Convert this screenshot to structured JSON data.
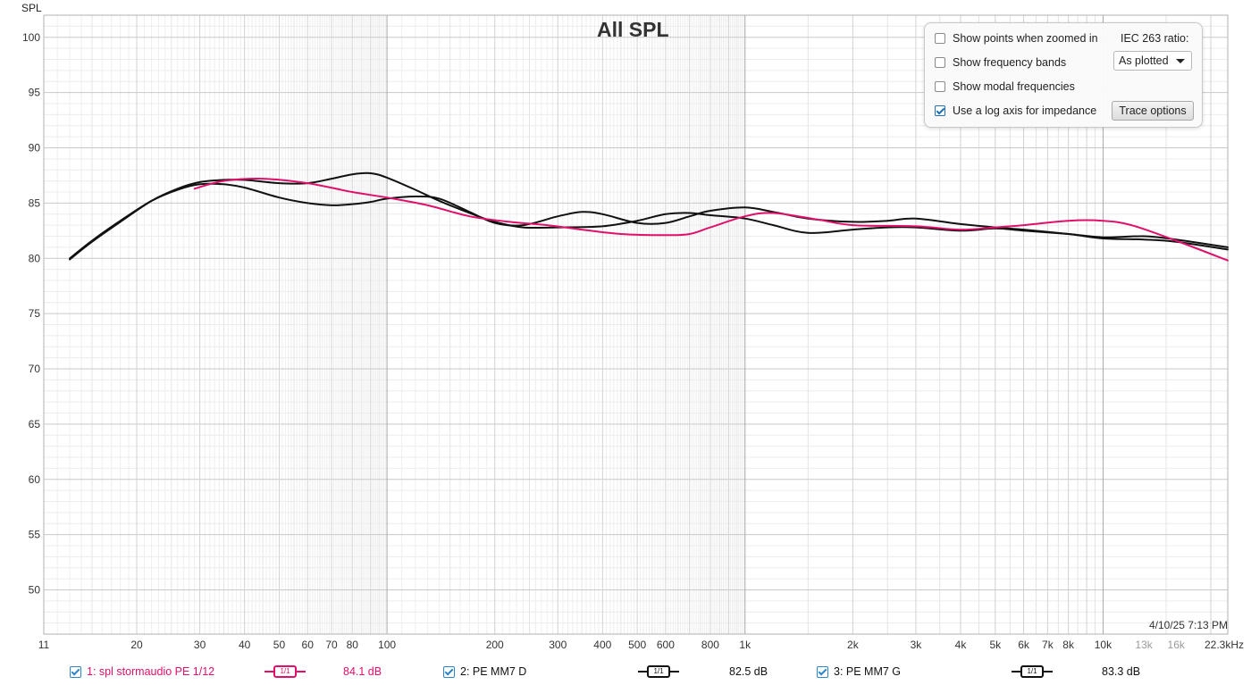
{
  "chart_data": {
    "type": "line",
    "title": "All SPL",
    "ylabel": "SPL",
    "xscale": "log",
    "xlim": [
      11,
      22300
    ],
    "ylim": [
      46,
      102
    ],
    "grid": true,
    "yticks": [
      100,
      95,
      90,
      85,
      80,
      75,
      70,
      65,
      60,
      55,
      50
    ],
    "xtick_labels": [
      {
        "x": 11,
        "label": "11",
        "muted": false
      },
      {
        "x": 20,
        "label": "20",
        "muted": false
      },
      {
        "x": 30,
        "label": "30",
        "muted": false
      },
      {
        "x": 40,
        "label": "40",
        "muted": false
      },
      {
        "x": 50,
        "label": "50",
        "muted": false
      },
      {
        "x": 60,
        "label": "60",
        "muted": false
      },
      {
        "x": 70,
        "label": "70",
        "muted": false
      },
      {
        "x": 80,
        "label": "80",
        "muted": false
      },
      {
        "x": 100,
        "label": "100",
        "muted": false
      },
      {
        "x": 200,
        "label": "200",
        "muted": false
      },
      {
        "x": 300,
        "label": "300",
        "muted": false
      },
      {
        "x": 400,
        "label": "400",
        "muted": false
      },
      {
        "x": 500,
        "label": "500",
        "muted": false
      },
      {
        "x": 600,
        "label": "600",
        "muted": false
      },
      {
        "x": 800,
        "label": "800",
        "muted": false
      },
      {
        "x": 1000,
        "label": "1k",
        "muted": false
      },
      {
        "x": 2000,
        "label": "2k",
        "muted": false
      },
      {
        "x": 3000,
        "label": "3k",
        "muted": false
      },
      {
        "x": 4000,
        "label": "4k",
        "muted": false
      },
      {
        "x": 5000,
        "label": "5k",
        "muted": false
      },
      {
        "x": 6000,
        "label": "6k",
        "muted": false
      },
      {
        "x": 7000,
        "label": "7k",
        "muted": false
      },
      {
        "x": 8000,
        "label": "8k",
        "muted": false
      },
      {
        "x": 10000,
        "label": "10k",
        "muted": false
      },
      {
        "x": 13000,
        "label": "13k",
        "muted": true
      },
      {
        "x": 16000,
        "label": "16k",
        "muted": true
      },
      {
        "x": 22300,
        "label": "22.3kHz",
        "muted": false
      }
    ],
    "series": [
      {
        "name": "1: spl stormaudio PE 1/12",
        "color": "#e0106b",
        "x": [
          29,
          35,
          45,
          60,
          80,
          100,
          130,
          170,
          220,
          280,
          350,
          450,
          600,
          700,
          800,
          1000,
          1200,
          1600,
          2000,
          3000,
          4000,
          5000,
          6000,
          8000,
          10000,
          12000,
          16000,
          22300
        ],
        "y": [
          86.3,
          87.0,
          87.2,
          86.8,
          86.0,
          85.5,
          84.8,
          83.8,
          83.3,
          83.0,
          82.6,
          82.2,
          82.1,
          82.2,
          82.8,
          83.8,
          84.1,
          83.5,
          83.0,
          82.9,
          82.6,
          82.8,
          83.0,
          83.4,
          83.4,
          83.0,
          81.6,
          79.8
        ]
      },
      {
        "name": "2: PE MM7 D",
        "color": "#111111",
        "x": [
          13,
          15,
          18,
          22,
          26,
          30,
          35,
          40,
          50,
          60,
          70,
          80,
          90,
          100,
          120,
          140,
          170,
          200,
          240,
          300,
          350,
          400,
          500,
          600,
          700,
          800,
          1000,
          1200,
          1500,
          2000,
          2500,
          3000,
          4000,
          5000,
          6000,
          8000,
          10000,
          13000,
          16000,
          22300
        ],
        "y": [
          80.0,
          81.6,
          83.4,
          85.2,
          86.2,
          86.7,
          86.7,
          86.4,
          85.5,
          85.0,
          84.8,
          84.9,
          85.1,
          85.4,
          85.6,
          85.4,
          84.2,
          83.2,
          83.0,
          83.8,
          84.2,
          84.0,
          83.2,
          83.2,
          83.8,
          84.3,
          84.6,
          84.2,
          83.6,
          83.3,
          83.4,
          83.6,
          83.1,
          82.8,
          82.6,
          82.2,
          81.8,
          81.7,
          81.5,
          80.8
        ]
      },
      {
        "name": "3: PE MM7 G",
        "color": "#111111",
        "x": [
          13,
          15,
          18,
          22,
          26,
          30,
          35,
          40,
          50,
          60,
          70,
          80,
          90,
          100,
          120,
          140,
          170,
          200,
          240,
          300,
          400,
          500,
          600,
          700,
          800,
          1000,
          1200,
          1500,
          2000,
          2500,
          3000,
          4000,
          5000,
          6000,
          8000,
          10000,
          13000,
          16000,
          22300
        ],
        "y": [
          79.9,
          81.5,
          83.3,
          85.2,
          86.3,
          86.9,
          87.1,
          87.1,
          86.8,
          86.8,
          87.2,
          87.6,
          87.7,
          87.3,
          86.2,
          85.2,
          84.1,
          83.3,
          82.8,
          82.8,
          82.9,
          83.4,
          84.0,
          84.1,
          83.9,
          83.6,
          83.0,
          82.3,
          82.6,
          82.8,
          82.8,
          82.5,
          82.7,
          82.5,
          82.2,
          81.9,
          82.0,
          81.7,
          81.0
        ]
      }
    ]
  },
  "header": {
    "y_axis_title": "SPL",
    "title": "All SPL",
    "timestamp": "4/10/25 7:13 PM"
  },
  "options": {
    "show_points_label": "Show points when zoomed in",
    "show_points_checked": false,
    "show_bands_label": "Show frequency bands",
    "show_bands_checked": false,
    "show_modal_label": "Show modal frequencies",
    "show_modal_checked": false,
    "log_impedance_label": "Use a log axis for impedance",
    "log_impedance_checked": true,
    "iec_label": "IEC 263 ratio:",
    "iec_value": "As plotted",
    "trace_options_label": "Trace options"
  },
  "legend": [
    {
      "label": "1: spl stormaudio PE 1/12",
      "color": "#e0106b",
      "smoothing": "1/1",
      "value": "84.1 dB"
    },
    {
      "label": "2: PE MM7 D",
      "color": "#111111",
      "smoothing": "1/1",
      "value": "82.5 dB"
    },
    {
      "label": "3: PE MM7 G",
      "color": "#111111",
      "smoothing": "1/1",
      "value": "83.3 dB"
    }
  ]
}
